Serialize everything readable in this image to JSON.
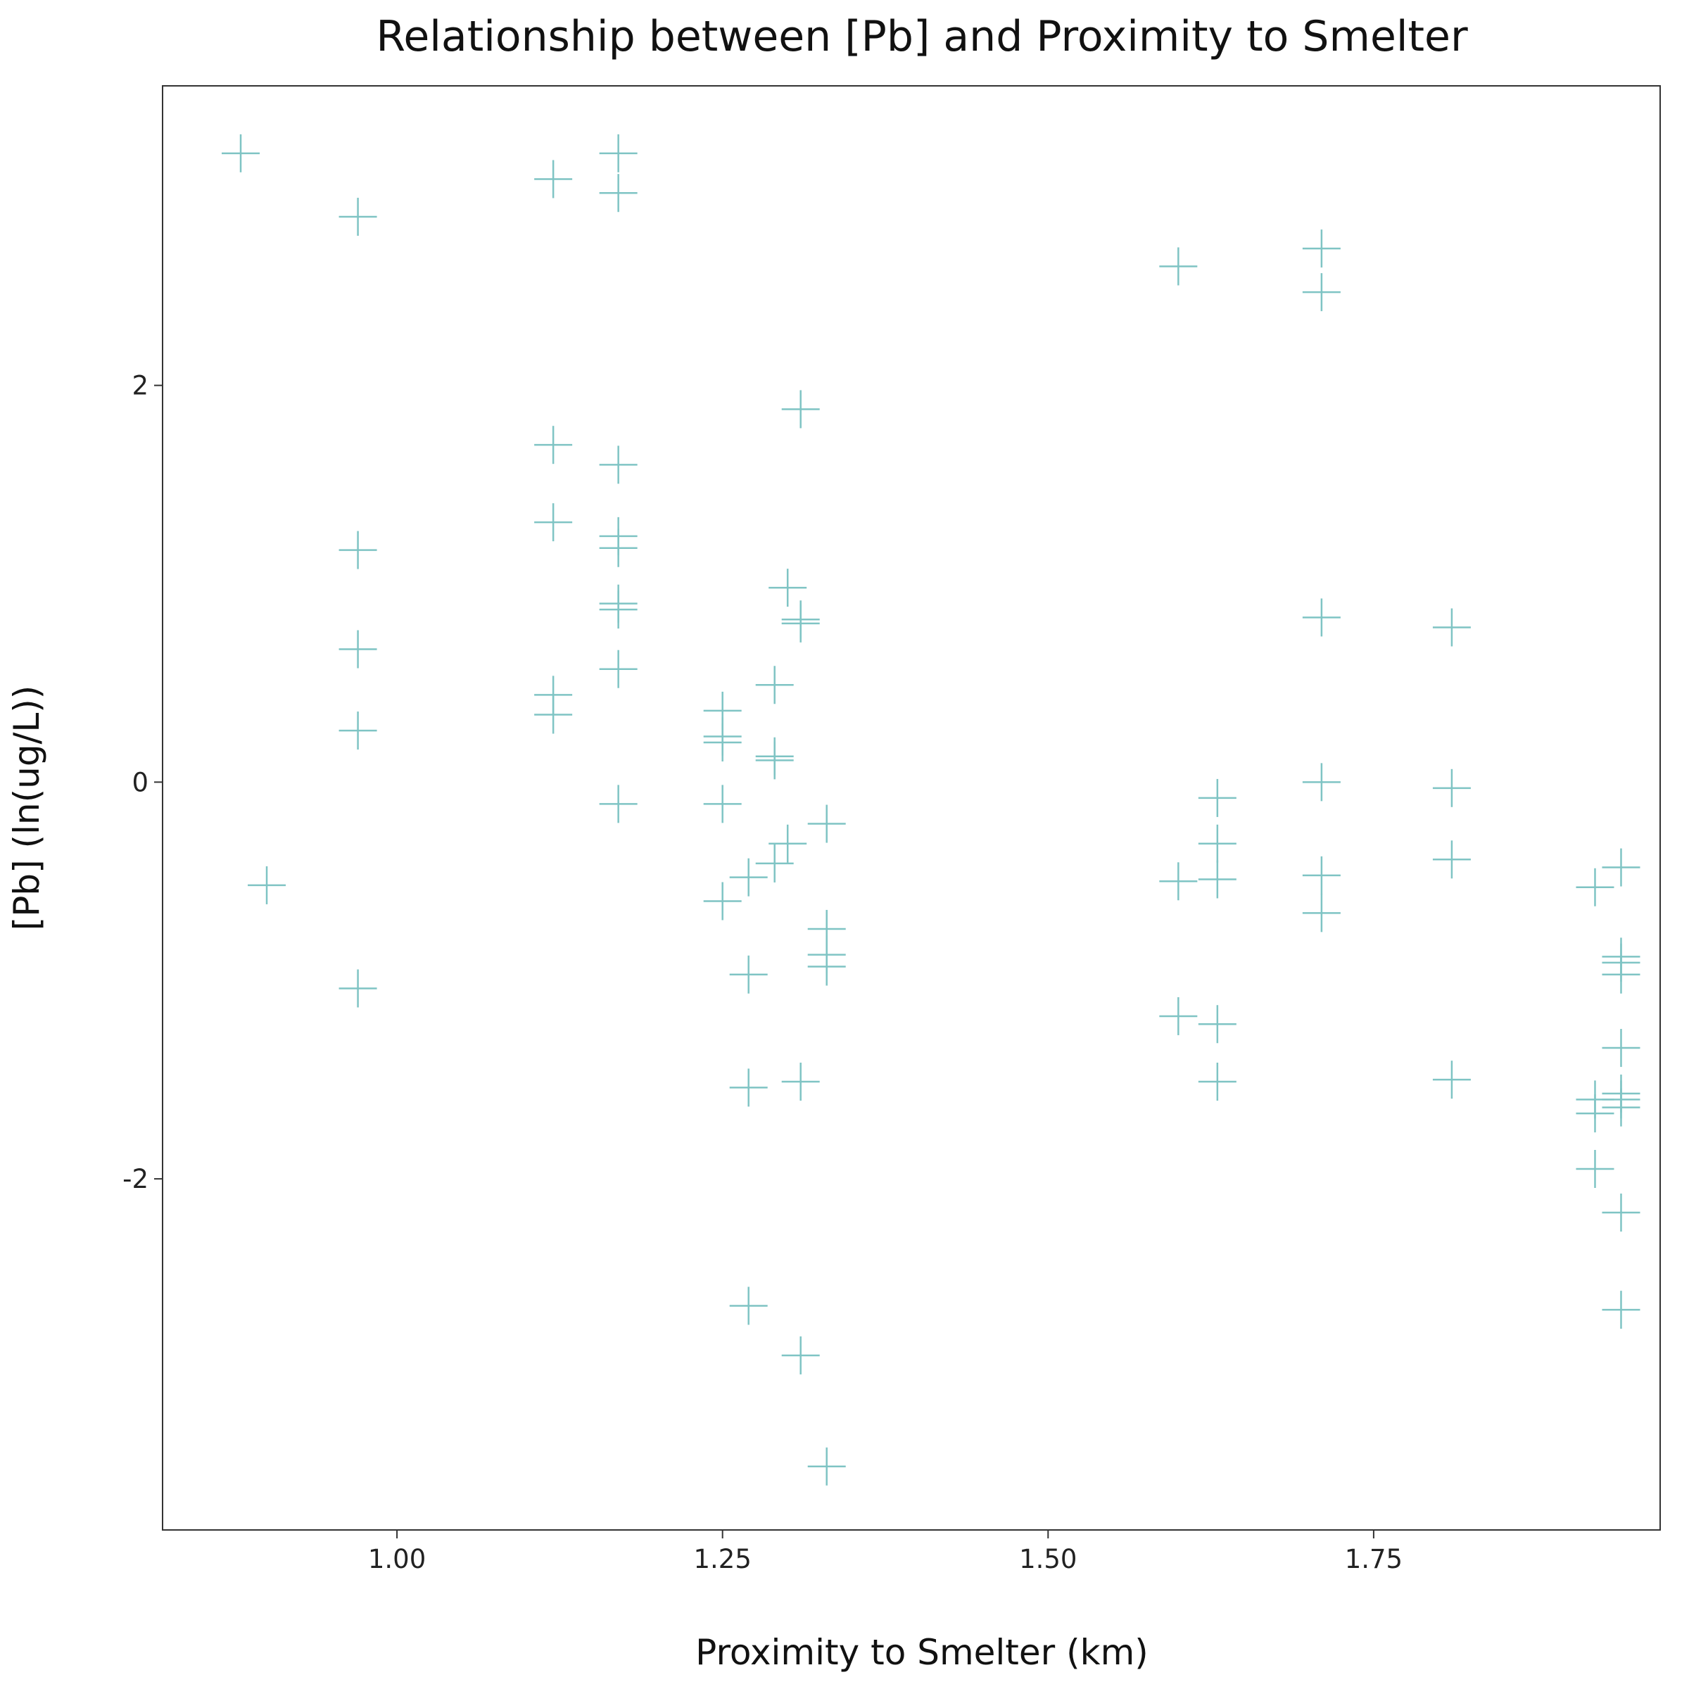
{
  "chart_data": {
    "type": "scatter",
    "title": "Relationship between [Pb] and Proximity to Smelter",
    "xlabel": "Proximity to Smelter (km)",
    "ylabel": "[Pb] (ln(ug/L))",
    "xlim": [
      0.82,
      1.97
    ],
    "ylim": [
      -3.77,
      3.51
    ],
    "x_ticks": [
      1.0,
      1.25,
      1.5,
      1.75
    ],
    "x_tick_labels": [
      "1.00",
      "1.25",
      "1.50",
      "1.75"
    ],
    "y_ticks": [
      -2,
      0,
      2
    ],
    "y_tick_labels": [
      "-2",
      "0",
      "2"
    ],
    "grid": false,
    "marker": "plus",
    "point_color": "#7fc4c4",
    "points": [
      {
        "x": 0.88,
        "y": 3.17
      },
      {
        "x": 0.9,
        "y": -0.52
      },
      {
        "x": 0.97,
        "y": 2.85
      },
      {
        "x": 0.97,
        "y": 1.17
      },
      {
        "x": 0.97,
        "y": 0.67
      },
      {
        "x": 0.97,
        "y": 0.26
      },
      {
        "x": 0.97,
        "y": -1.04
      },
      {
        "x": 1.12,
        "y": 3.04
      },
      {
        "x": 1.12,
        "y": 1.7
      },
      {
        "x": 1.12,
        "y": 1.31
      },
      {
        "x": 1.12,
        "y": 0.44
      },
      {
        "x": 1.12,
        "y": 0.34
      },
      {
        "x": 1.17,
        "y": 3.17
      },
      {
        "x": 1.17,
        "y": 2.97
      },
      {
        "x": 1.17,
        "y": 1.6
      },
      {
        "x": 1.17,
        "y": 1.24
      },
      {
        "x": 1.17,
        "y": 1.18
      },
      {
        "x": 1.17,
        "y": 0.9
      },
      {
        "x": 1.17,
        "y": 0.87
      },
      {
        "x": 1.17,
        "y": 0.57
      },
      {
        "x": 1.17,
        "y": -0.11
      },
      {
        "x": 1.25,
        "y": 0.36
      },
      {
        "x": 1.25,
        "y": 0.23
      },
      {
        "x": 1.25,
        "y": 0.2
      },
      {
        "x": 1.25,
        "y": -0.11
      },
      {
        "x": 1.25,
        "y": -0.6
      },
      {
        "x": 1.27,
        "y": -0.48
      },
      {
        "x": 1.27,
        "y": -0.97
      },
      {
        "x": 1.27,
        "y": -1.54
      },
      {
        "x": 1.27,
        "y": -2.64
      },
      {
        "x": 1.29,
        "y": 0.49
      },
      {
        "x": 1.29,
        "y": 0.13
      },
      {
        "x": 1.29,
        "y": 0.11
      },
      {
        "x": 1.29,
        "y": -0.41
      },
      {
        "x": 1.3,
        "y": 0.98
      },
      {
        "x": 1.3,
        "y": -0.31
      },
      {
        "x": 1.31,
        "y": 1.88
      },
      {
        "x": 1.31,
        "y": 0.82
      },
      {
        "x": 1.31,
        "y": 0.8
      },
      {
        "x": 1.31,
        "y": -1.51
      },
      {
        "x": 1.31,
        "y": -2.89
      },
      {
        "x": 1.33,
        "y": -0.21
      },
      {
        "x": 1.33,
        "y": -0.74
      },
      {
        "x": 1.33,
        "y": -0.87
      },
      {
        "x": 1.33,
        "y": -0.93
      },
      {
        "x": 1.33,
        "y": -3.45
      },
      {
        "x": 1.6,
        "y": 2.6
      },
      {
        "x": 1.6,
        "y": -0.5
      },
      {
        "x": 1.6,
        "y": -1.18
      },
      {
        "x": 1.63,
        "y": -0.08
      },
      {
        "x": 1.63,
        "y": -0.31
      },
      {
        "x": 1.63,
        "y": -0.49
      },
      {
        "x": 1.63,
        "y": -1.22
      },
      {
        "x": 1.63,
        "y": -1.51
      },
      {
        "x": 1.71,
        "y": 2.69
      },
      {
        "x": 1.71,
        "y": 2.47
      },
      {
        "x": 1.71,
        "y": 0.83
      },
      {
        "x": 1.71,
        "y": 0.0
      },
      {
        "x": 1.71,
        "y": -0.47
      },
      {
        "x": 1.71,
        "y": -0.66
      },
      {
        "x": 1.81,
        "y": 0.78
      },
      {
        "x": 1.81,
        "y": -0.03
      },
      {
        "x": 1.81,
        "y": -0.39
      },
      {
        "x": 1.81,
        "y": -1.5
      },
      {
        "x": 1.92,
        "y": -0.53
      },
      {
        "x": 1.92,
        "y": -1.6
      },
      {
        "x": 1.92,
        "y": -1.67
      },
      {
        "x": 1.92,
        "y": -1.95
      },
      {
        "x": 1.94,
        "y": -0.43
      },
      {
        "x": 1.94,
        "y": -0.88
      },
      {
        "x": 1.94,
        "y": -0.91
      },
      {
        "x": 1.94,
        "y": -0.97
      },
      {
        "x": 1.94,
        "y": -1.34
      },
      {
        "x": 1.94,
        "y": -1.57
      },
      {
        "x": 1.94,
        "y": -1.6
      },
      {
        "x": 1.94,
        "y": -1.64
      },
      {
        "x": 1.94,
        "y": -2.17
      },
      {
        "x": 1.94,
        "y": -2.66
      }
    ]
  }
}
